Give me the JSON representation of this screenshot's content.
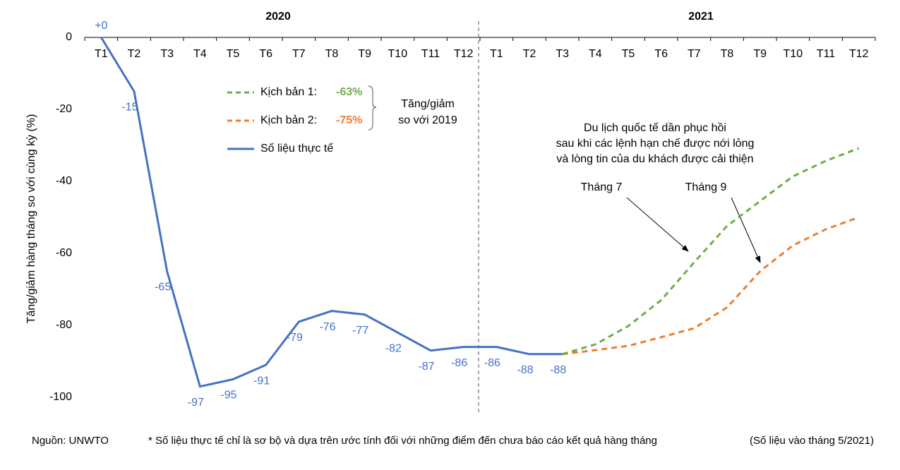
{
  "chart_data": {
    "type": "line",
    "y_label": "Tăng/giảm hàng tháng so với cùng kỳ (%)",
    "groups": [
      "2020",
      "2021"
    ],
    "categories": [
      "T1",
      "T2",
      "T3",
      "T4",
      "T5",
      "T6",
      "T7",
      "T8",
      "T9",
      "T10",
      "T11",
      "T12",
      "T1",
      "T2",
      "T3",
      "T4",
      "T5",
      "T6",
      "T7",
      "T8",
      "T9",
      "T10",
      "T11",
      "T12"
    ],
    "ylim": [
      -100,
      0
    ],
    "yticks": [
      0,
      -20,
      -40,
      -60,
      -80,
      -100
    ],
    "series": [
      {
        "name": "Số liệu thực tế",
        "color": "#4472c4",
        "dash": false,
        "values": [
          0,
          -15,
          -65,
          -97,
          -95,
          -91,
          -79,
          -76,
          -77,
          -82,
          -87,
          -86,
          -86,
          -88,
          -88,
          null,
          null,
          null,
          null,
          null,
          null,
          null,
          null,
          null
        ],
        "value_labels": [
          "+0",
          "-15",
          "-65",
          "-97",
          "-95",
          "-91",
          "-79",
          "-76",
          "-77",
          "-82",
          "-87",
          "-86",
          "-86",
          "-88",
          "-88",
          null,
          null,
          null,
          null,
          null,
          null,
          null,
          null,
          null
        ]
      },
      {
        "name": "Kịch bản 1:",
        "annotation": "-63%",
        "color": "#70ad47",
        "dash": true,
        "values": [
          null,
          null,
          null,
          null,
          null,
          null,
          null,
          null,
          null,
          null,
          null,
          null,
          null,
          null,
          -88,
          -85.3,
          -80.2,
          -73,
          -62.5,
          -52.4,
          -45.5,
          -38.6,
          -34.3,
          -30.8
        ]
      },
      {
        "name": "Kịch bản 2:",
        "annotation": "-75%",
        "color": "#ed7d31",
        "dash": true,
        "values": [
          null,
          null,
          null,
          null,
          null,
          null,
          null,
          null,
          null,
          null,
          null,
          null,
          null,
          null,
          -88,
          -86.9,
          -85.7,
          -83.3,
          -80.8,
          -75,
          -65,
          -57.8,
          -53.3,
          -50
        ]
      }
    ],
    "bracket_label": [
      "Tăng/giảm",
      "so với 2019"
    ],
    "annotations": [
      "Du lịch quốc tế dần phục hồi",
      "sau khi các lệnh hạn chế được nới lỏng",
      "và lòng tin của du khách được cải thiện"
    ],
    "arrow_labels": [
      "Tháng 7",
      "Tháng 9"
    ],
    "source": "Nguồn: UNWTO",
    "note": "* Số liệu thực tế chỉ là sơ bộ và dựa trên ước tính đối với những điểm đến chưa báo cáo kết quả hàng tháng",
    "date_note": "(Số liệu vào tháng 5/2021)"
  }
}
